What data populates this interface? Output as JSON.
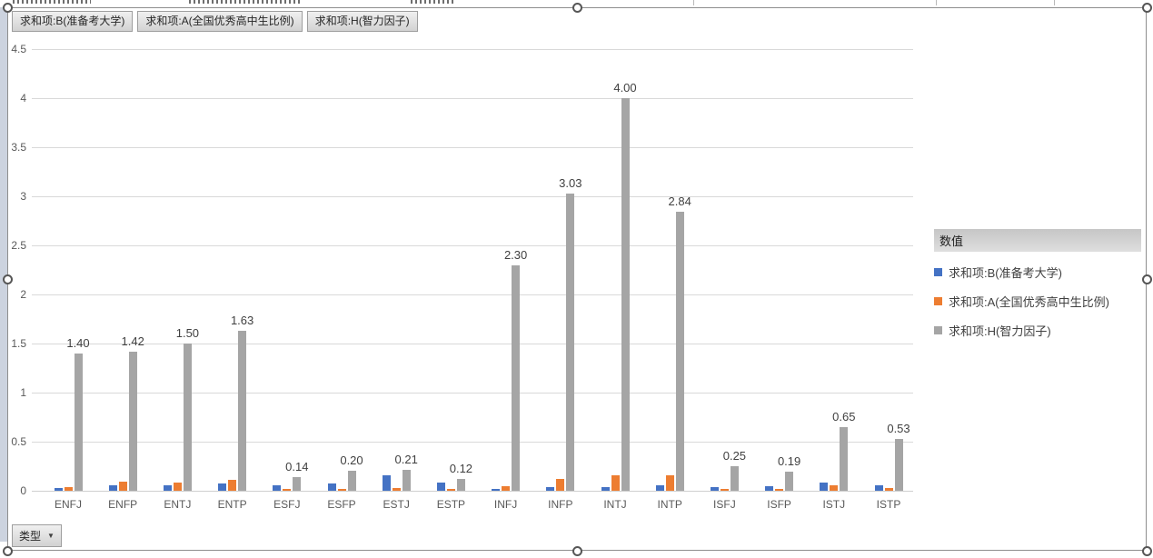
{
  "pivot": {
    "value_field_buttons": [
      {
        "label": "求和项:B(准备考大学)"
      },
      {
        "label": "求和项:A(全国优秀高中生比例)"
      },
      {
        "label": "求和项:H(智力因子)"
      }
    ],
    "axis_field_button": {
      "label": "类型",
      "arrow": "▼"
    }
  },
  "legend": {
    "title": "数值",
    "entries": [
      {
        "label": "求和项:B(准备考大学)",
        "color": "#4472C4"
      },
      {
        "label": "求和项:A(全国优秀高中生比例)",
        "color": "#ED7D31"
      },
      {
        "label": "求和项:H(智力因子)",
        "color": "#A5A5A5"
      }
    ]
  },
  "chart_data": {
    "type": "bar",
    "title": "",
    "xlabel": "",
    "ylabel": "",
    "categories": [
      "ENFJ",
      "ENFP",
      "ENTJ",
      "ENTP",
      "ESFJ",
      "ESFP",
      "ESTJ",
      "ESTP",
      "INFJ",
      "INFP",
      "INTJ",
      "INTP",
      "ISFJ",
      "ISFP",
      "ISTJ",
      "ISTP"
    ],
    "series": [
      {
        "name": "求和项:B(准备考大学)",
        "color": "#4472C4",
        "values": [
          0.03,
          0.06,
          0.06,
          0.07,
          0.06,
          0.07,
          0.16,
          0.08,
          0.02,
          0.04,
          0.04,
          0.06,
          0.04,
          0.05,
          0.08,
          0.06
        ]
      },
      {
        "name": "求和项:A(全国优秀高中生比例)",
        "color": "#ED7D31",
        "values": [
          0.04,
          0.09,
          0.08,
          0.11,
          0.01,
          0.01,
          0.03,
          0.01,
          0.05,
          0.12,
          0.16,
          0.16,
          0.01,
          0.01,
          0.06,
          0.03
        ]
      },
      {
        "name": "求和项:H(智力因子)",
        "color": "#A5A5A5",
        "values": [
          1.4,
          1.42,
          1.5,
          1.63,
          0.14,
          0.2,
          0.21,
          0.12,
          2.3,
          3.03,
          4.0,
          2.84,
          0.25,
          0.19,
          0.65,
          0.53
        ],
        "labels": [
          "1.40",
          "1.42",
          "1.50",
          "1.63",
          "0.14",
          "0.20",
          "0.21",
          "0.12",
          "2.30",
          "3.03",
          "4.00",
          "2.84",
          "0.25",
          "0.19",
          "0.65",
          "0.53"
        ]
      }
    ],
    "ylim": [
      0,
      4.5
    ],
    "ytick_step": 0.5,
    "ytick_labels": [
      "0",
      "0.5",
      "1",
      "1.5",
      "2",
      "2.5",
      "3",
      "3.5",
      "4",
      "4.5"
    ],
    "grid": true,
    "legend_position": "right"
  }
}
